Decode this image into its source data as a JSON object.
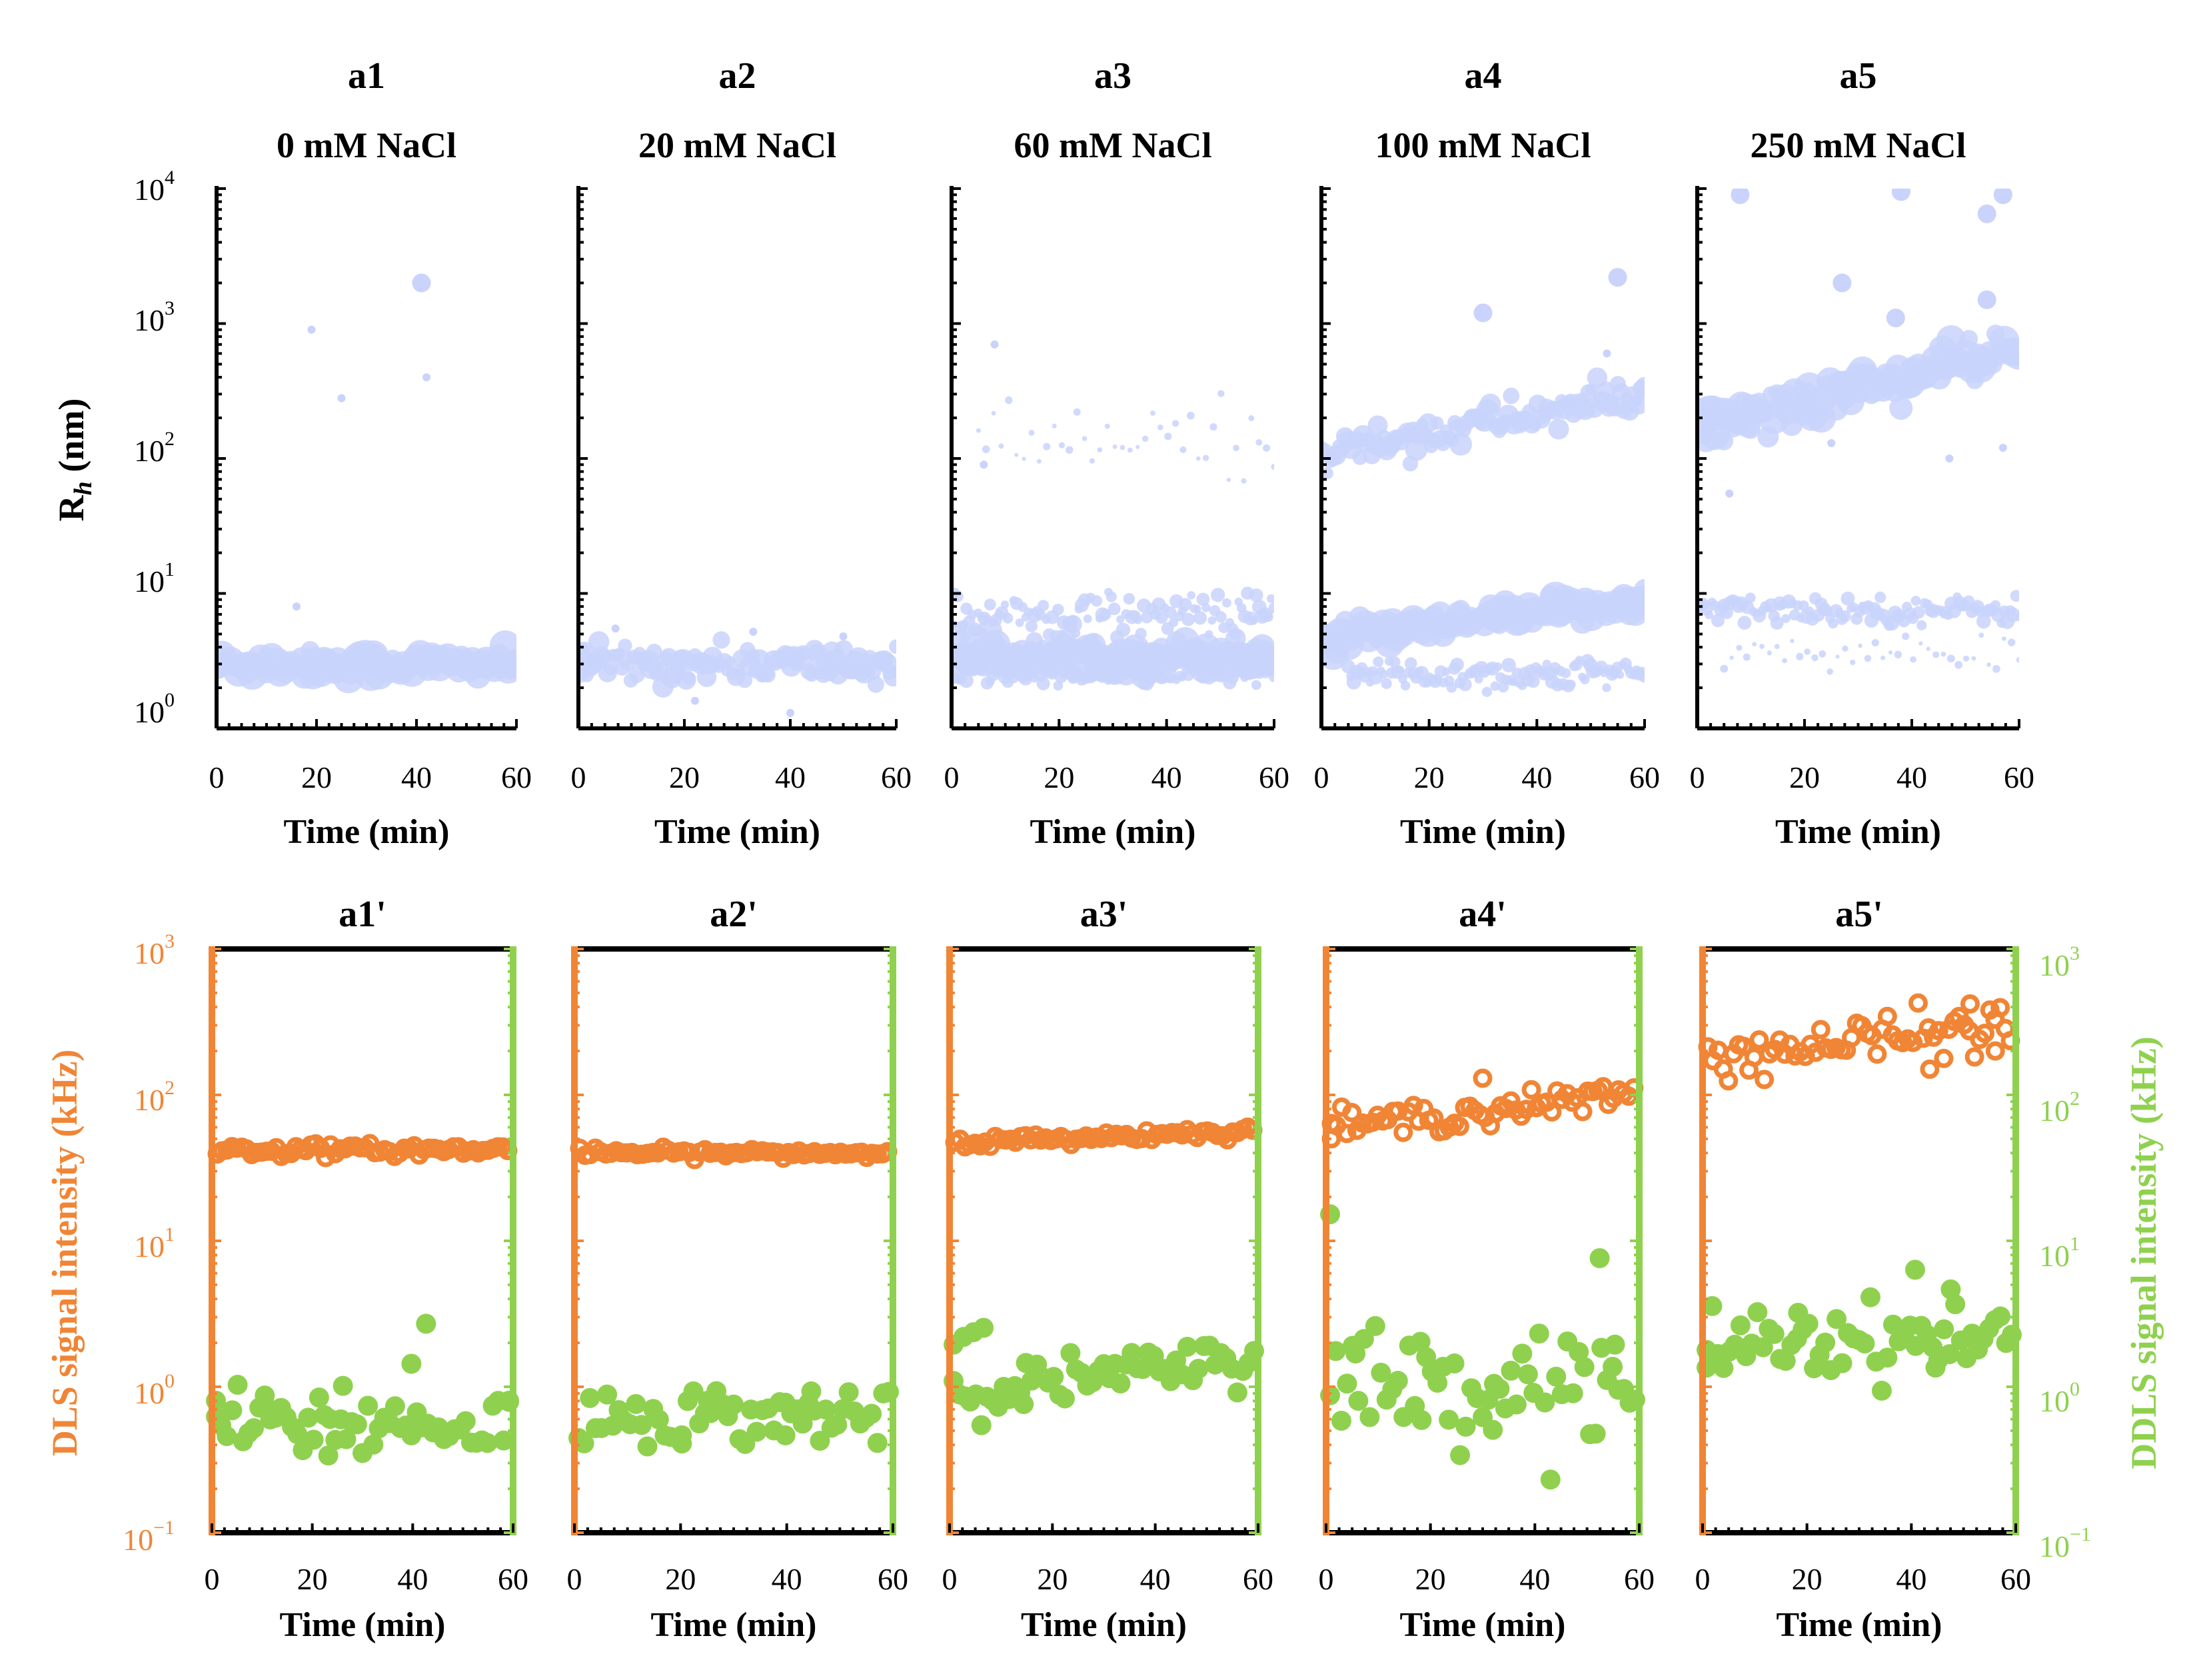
{
  "figure": {
    "colors": {
      "bubble": "#c9d3fb",
      "dls": "#f08536",
      "ddls": "#8fd14f",
      "axis": "#000000"
    },
    "x_ticks": [
      "0",
      "20",
      "40",
      "60"
    ],
    "x_title": "Time (min)",
    "top_ylabel": "R_h (nm)",
    "top_ylabel_main": "R",
    "top_ylabel_sub": "h",
    "top_ylabel_unit": " (nm)",
    "top_yticks": [
      {
        "base": "10",
        "exp": "4"
      },
      {
        "base": "10",
        "exp": "3"
      },
      {
        "base": "10",
        "exp": "2"
      },
      {
        "base": "10",
        "exp": "1"
      },
      {
        "base": "10",
        "exp": "0"
      }
    ],
    "bottom_left_ylabel": "DLS signal intensity (kHz)",
    "bottom_right_ylabel": "DDLS signal intensity (kHz)",
    "bottom_yticks": [
      {
        "base": "10",
        "exp": "3"
      },
      {
        "base": "10",
        "exp": "2"
      },
      {
        "base": "10",
        "exp": "1"
      },
      {
        "base": "10",
        "exp": "0"
      },
      {
        "base": "10",
        "exp": "−1"
      }
    ]
  },
  "chart_data": [
    {
      "id": "a1",
      "type": "scatter",
      "title": "0 mM NaCl",
      "xlabel": "Time (min)",
      "ylabel": "R_h (nm)",
      "xlim": [
        0,
        60
      ],
      "ylim": [
        1,
        10000
      ],
      "yscale": "log",
      "populations": [
        {
          "name": "main",
          "x_range": [
            0,
            60
          ],
          "y_center": 3.0,
          "spread": 0.05,
          "marker_size": "large"
        }
      ],
      "outliers": [
        {
          "x": 41,
          "y": 2000
        },
        {
          "x": 19,
          "y": 900
        },
        {
          "x": 42,
          "y": 400
        },
        {
          "x": 25,
          "y": 280
        },
        {
          "x": 16,
          "y": 8
        }
      ]
    },
    {
      "id": "a2",
      "type": "scatter",
      "title": "20 mM NaCl",
      "xlabel": "Time (min)",
      "xlim": [
        0,
        60
      ],
      "ylim": [
        1,
        10000
      ],
      "yscale": "log",
      "populations": [
        {
          "name": "main",
          "x_range": [
            0,
            60
          ],
          "y_center": 3.0,
          "spread": 0.07,
          "marker_size": "medium"
        }
      ],
      "outliers": [
        {
          "x": 7,
          "y": 5.5
        },
        {
          "x": 33,
          "y": 5.2
        },
        {
          "x": 50,
          "y": 4.8
        },
        {
          "x": 22,
          "y": 1.6
        },
        {
          "x": 40,
          "y": 1.3
        }
      ]
    },
    {
      "id": "a3",
      "type": "scatter",
      "title": "60 mM NaCl",
      "xlabel": "Time (min)",
      "xlim": [
        0,
        60
      ],
      "ylim": [
        1,
        10000
      ],
      "yscale": "log",
      "populations": [
        {
          "name": "main",
          "x_range": [
            0,
            60
          ],
          "y_center": 3.5,
          "spread": 0.06,
          "marker_size": "large"
        },
        {
          "name": "secondary",
          "x_range": [
            0,
            60
          ],
          "y_center": 7.0,
          "spread": 0.08,
          "marker_size": "small"
        },
        {
          "name": "lower",
          "x_range": [
            0,
            60
          ],
          "y_center": 2.5,
          "spread": 0.04,
          "marker_size": "small"
        },
        {
          "name": "aggregates",
          "x_range": [
            5,
            60
          ],
          "y_center": 130,
          "spread": 0.15,
          "marker_size": "tiny"
        }
      ],
      "outliers": [
        {
          "x": 8,
          "y": 700
        },
        {
          "x": 6,
          "y": 90
        }
      ]
    },
    {
      "id": "a4",
      "type": "scatter",
      "title": "100 mM NaCl",
      "xlabel": "Time (min)",
      "xlim": [
        0,
        60
      ],
      "ylim": [
        1,
        10000
      ],
      "yscale": "log",
      "populations": [
        {
          "name": "large",
          "x_range": [
            0,
            60
          ],
          "y_start": 110,
          "y_end": 300,
          "spread": 0.07,
          "marker_size": "medium"
        },
        {
          "name": "main",
          "x_range": [
            0,
            60
          ],
          "y_start": 4.5,
          "y_end": 9,
          "spread": 0.05,
          "marker_size": "large"
        },
        {
          "name": "lower",
          "x_range": [
            5,
            60
          ],
          "y_center": 2.5,
          "spread": 0.06,
          "marker_size": "small"
        }
      ],
      "outliers": [
        {
          "x": 55,
          "y": 2200
        },
        {
          "x": 53,
          "y": 600
        },
        {
          "x": 30,
          "y": 1200
        }
      ]
    },
    {
      "id": "a5",
      "type": "scatter",
      "title": "250 mM NaCl",
      "xlabel": "Time (min)",
      "xlim": [
        0,
        60
      ],
      "ylim": [
        1,
        10000
      ],
      "yscale": "log",
      "populations": [
        {
          "name": "large",
          "x_range": [
            0,
            60
          ],
          "y_start": 170,
          "y_end": 650,
          "spread": 0.08,
          "marker_size": "large"
        },
        {
          "name": "main",
          "x_range": [
            0,
            60
          ],
          "y_center": 7.5,
          "spread": 0.05,
          "marker_size": "small"
        },
        {
          "name": "lower",
          "x_range": [
            5,
            60
          ],
          "y_center": 3.5,
          "spread": 0.08,
          "marker_size": "tiny"
        }
      ],
      "outliers": [
        {
          "x": 54,
          "y": 6500
        },
        {
          "x": 38,
          "y": 9500
        },
        {
          "x": 57,
          "y": 9000
        },
        {
          "x": 8,
          "y": 9000
        },
        {
          "x": 27,
          "y": 2000
        },
        {
          "x": 54,
          "y": 1500
        },
        {
          "x": 37,
          "y": 1100
        },
        {
          "x": 25,
          "y": 130
        },
        {
          "x": 47,
          "y": 100
        },
        {
          "x": 57,
          "y": 120
        },
        {
          "x": 6,
          "y": 55
        }
      ]
    },
    {
      "id": "a1'",
      "type": "scatter",
      "xlabel": "Time (min)",
      "xlim": [
        0,
        60
      ],
      "ylim": [
        0.1,
        1000
      ],
      "yscale": "log",
      "series": [
        {
          "name": "DLS signal intensity (kHz)",
          "axis": "left",
          "y_center": 42,
          "spread": 0.02
        },
        {
          "name": "DDLS signal intensity (kHz)",
          "axis": "right",
          "y_center": 0.65,
          "spread": 0.12,
          "highlights": [
            {
              "x": 43,
              "y": 3.2
            },
            {
              "x": 40,
              "y": 1.7
            },
            {
              "x": 26,
              "y": 1.2
            },
            {
              "x": 0,
              "y": 0.95
            },
            {
              "x": 60,
              "y": 0.95
            },
            {
              "x": 10,
              "y": 0.9
            },
            {
              "x": 23,
              "y": 0.4
            }
          ]
        }
      ]
    },
    {
      "id": "a2'",
      "type": "scatter",
      "xlabel": "Time (min)",
      "xlim": [
        0,
        60
      ],
      "ylim": [
        0.1,
        1000
      ],
      "yscale": "log",
      "series": [
        {
          "name": "DLS signal intensity (kHz)",
          "axis": "left",
          "y_center": 40,
          "spread": 0.015
        },
        {
          "name": "DDLS signal intensity (kHz)",
          "axis": "right",
          "y_center": 0.75,
          "spread": 0.1,
          "highlights": [
            {
              "x": 45,
              "y": 1.1
            },
            {
              "x": 25,
              "y": 0.95
            },
            {
              "x": 40,
              "y": 0.55
            },
            {
              "x": 20,
              "y": 0.55
            }
          ]
        }
      ]
    },
    {
      "id": "a3'",
      "type": "scatter",
      "xlabel": "Time (min)",
      "xlim": [
        0,
        60
      ],
      "ylim": [
        0.1,
        1000
      ],
      "yscale": "log",
      "series": [
        {
          "name": "DLS signal intensity (kHz)",
          "axis": "left",
          "y_start": 47,
          "y_end": 57,
          "spread": 0.02
        },
        {
          "name": "DDLS signal intensity (kHz)",
          "axis": "right",
          "y_start": 1.1,
          "y_end": 1.8,
          "spread": 0.08,
          "highlights": [
            {
              "x": 0,
              "y": 2.3
            },
            {
              "x": 2,
              "y": 2.6
            },
            {
              "x": 4,
              "y": 2.8
            },
            {
              "x": 6,
              "y": 3.0
            },
            {
              "x": 14,
              "y": 0.9
            }
          ]
        }
      ]
    },
    {
      "id": "a4'",
      "type": "scatter",
      "xlabel": "Time (min)",
      "xlim": [
        0,
        60
      ],
      "ylim": [
        0.1,
        1000
      ],
      "yscale": "log",
      "series": [
        {
          "name": "DLS signal intensity (kHz)",
          "axis": "left",
          "y_start": 60,
          "y_end": 100,
          "spread": 0.05,
          "highlights": [
            {
              "x": 30,
              "y": 130
            },
            {
              "x": 0,
              "y": 50
            }
          ]
        },
        {
          "name": "DDLS signal intensity (kHz)",
          "axis": "right",
          "y_center": 1.3,
          "spread": 0.18,
          "highlights": [
            {
              "x": 0,
              "y": 18
            },
            {
              "x": 53,
              "y": 9
            },
            {
              "x": 56,
              "y": 2.3
            },
            {
              "x": 5,
              "y": 2.0
            },
            {
              "x": 18,
              "y": 0.7
            },
            {
              "x": 32,
              "y": 0.6
            }
          ]
        }
      ]
    },
    {
      "id": "a5'",
      "type": "scatter",
      "xlabel": "Time (min)",
      "xlim": [
        0,
        60
      ],
      "ylim": [
        0.1,
        1000
      ],
      "yscale": "log",
      "series": [
        {
          "name": "DLS signal intensity (kHz)",
          "axis": "left",
          "y_start": 180,
          "y_end": 300,
          "spread": 0.08,
          "highlights": [
            {
              "x": 52,
              "y": 420
            },
            {
              "x": 44,
              "y": 150
            },
            {
              "x": 57,
              "y": 200
            }
          ]
        },
        {
          "name": "DDLS signal intensity (kHz)",
          "axis": "right",
          "y_center": 2.5,
          "spread": 0.12,
          "highlights": [
            {
              "x": 41,
              "y": 7.5
            },
            {
              "x": 48,
              "y": 5.5
            },
            {
              "x": 18,
              "y": 3.8
            },
            {
              "x": 0,
              "y": 1.6
            },
            {
              "x": 45,
              "y": 1.6
            }
          ]
        }
      ]
    }
  ]
}
